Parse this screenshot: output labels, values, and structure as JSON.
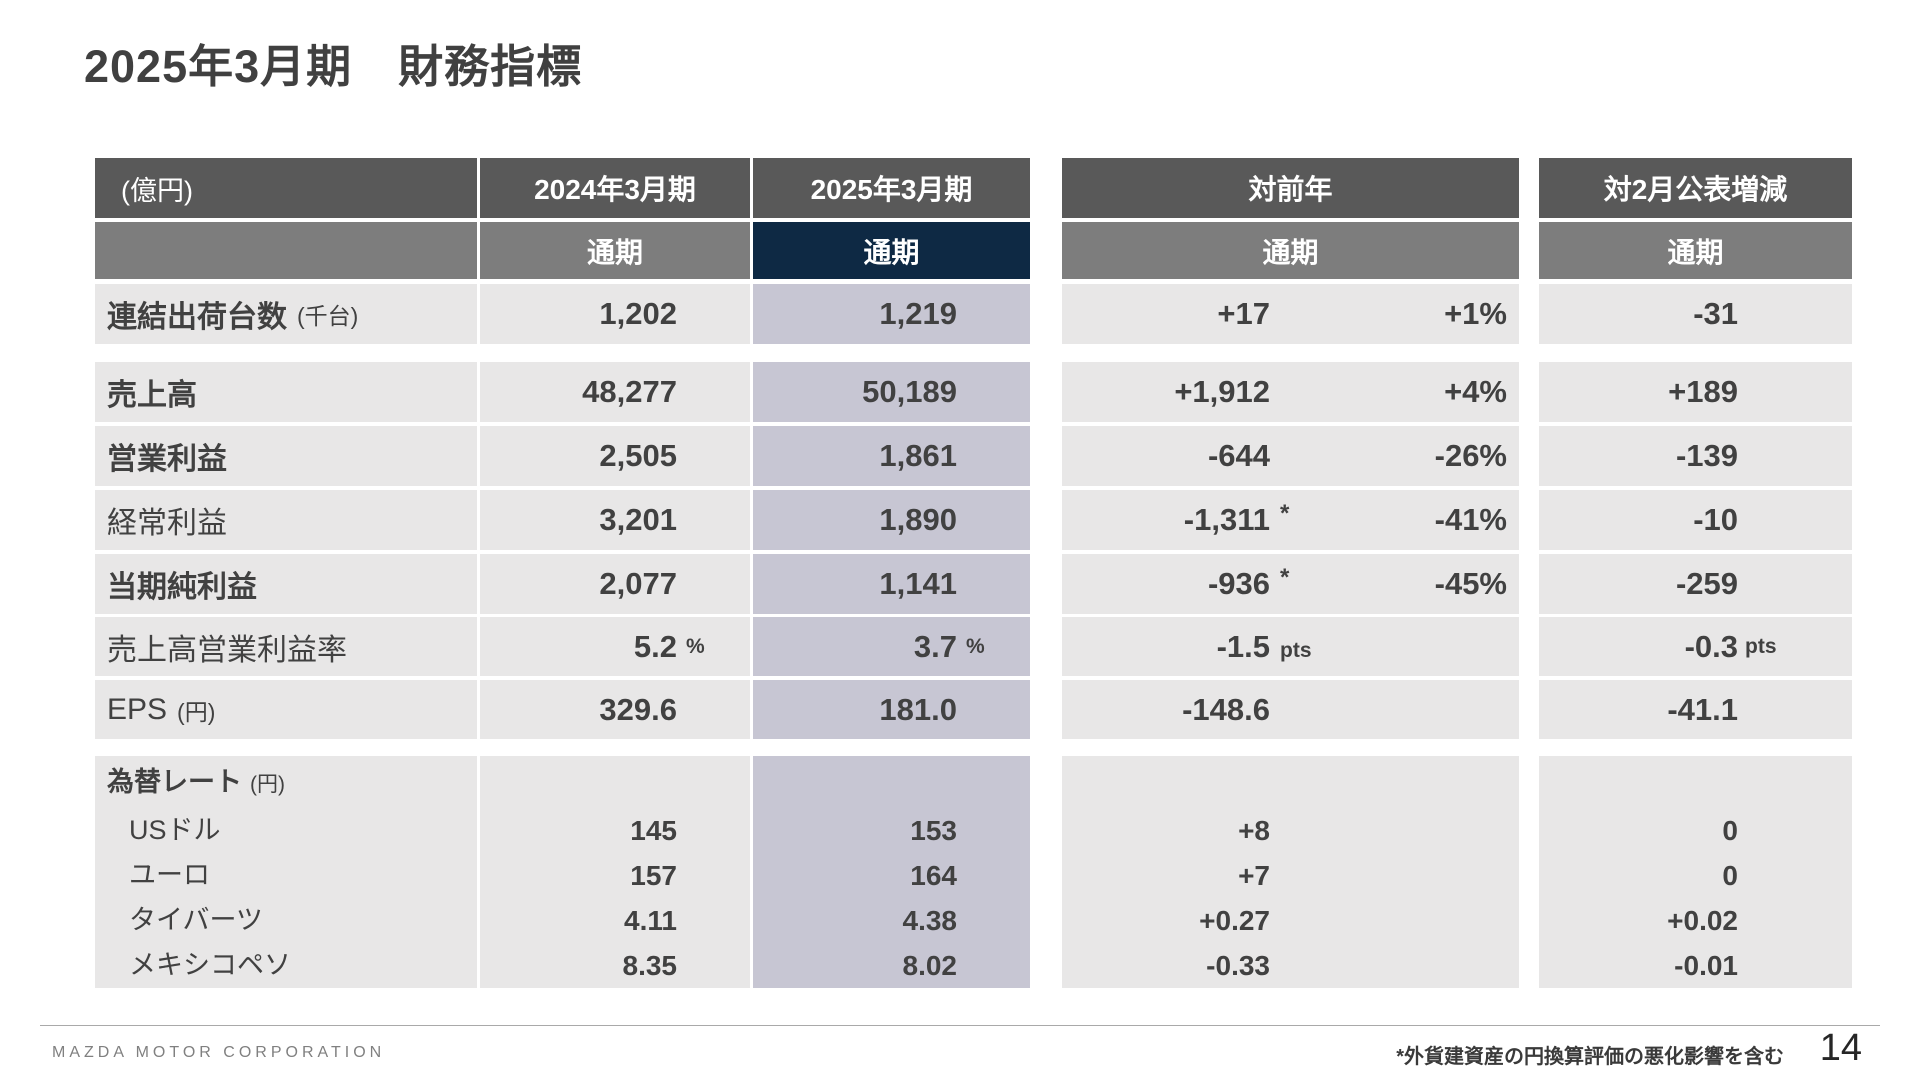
{
  "slide": {
    "title": "2025年3月期　財務指標",
    "unit_note": "(億円)"
  },
  "columns": {
    "fy2024": "2024年3月期",
    "fy2025": "2025年3月期",
    "yoy": "対前年",
    "vs_feb": "対2月公表増減",
    "period": "通期"
  },
  "rows": [
    {
      "label": "連結出荷台数",
      "label_suffix": "(千台)",
      "fy2024": "1,202",
      "fy2025": "1,219",
      "yoy": "+17",
      "yoy_pct": "+1%",
      "vs_feb": "-31"
    },
    {
      "label": "売上高",
      "fy2024": "48,277",
      "fy2025": "50,189",
      "yoy": "+1,912",
      "yoy_pct": "+4%",
      "vs_feb": "+189"
    },
    {
      "label": "営業利益",
      "fy2024": "2,505",
      "fy2025": "1,861",
      "yoy": "-644",
      "yoy_pct": "-26%",
      "vs_feb": "-139"
    },
    {
      "label": "経常利益",
      "fy2024": "3,201",
      "fy2025": "1,890",
      "yoy": "-1,311",
      "yoy_star": "*",
      "yoy_pct": "-41%",
      "vs_feb": "-10"
    },
    {
      "label": "当期純利益",
      "fy2024": "2,077",
      "fy2025": "1,141",
      "yoy": "-936",
      "yoy_star": "*",
      "yoy_pct": "-45%",
      "vs_feb": "-259"
    },
    {
      "label": "売上高営業利益率",
      "fy2024": "5.2",
      "fy2024_unit": "%",
      "fy2025": "3.7",
      "fy2025_unit": "%",
      "yoy": "-1.5",
      "yoy_unit": "pts",
      "vs_feb": "-0.3",
      "vs_feb_unit": "pts"
    },
    {
      "label": "EPS",
      "label_suffix": "(円)",
      "fy2024": "329.6",
      "fy2025": "181.0",
      "yoy": "-148.6",
      "vs_feb": "-41.1"
    }
  ],
  "fx": {
    "label": "為替レート",
    "label_suffix": "(円)",
    "rows": [
      {
        "label": "USドル",
        "fy2024": "145",
        "fy2025": "153",
        "yoy": "+8",
        "vs_feb": "0"
      },
      {
        "label": "ユーロ",
        "fy2024": "157",
        "fy2025": "164",
        "yoy": "+7",
        "vs_feb": "0"
      },
      {
        "label": "タイバーツ",
        "fy2024": "4.11",
        "fy2025": "4.38",
        "yoy": "+0.27",
        "vs_feb": "+0.02"
      },
      {
        "label": "メキシコペソ",
        "fy2024": "8.35",
        "fy2025": "8.02",
        "yoy": "-0.33",
        "vs_feb": "-0.01"
      }
    ]
  },
  "footer": {
    "company": "MAZDA MOTOR CORPORATION",
    "footnote": "*外貨建資産の円換算評価の悪化影響を含む",
    "page": "14"
  },
  "colors": {
    "header_dark": "#595959",
    "header_mid": "#7d7d7d",
    "highlight_navy": "#0e2944",
    "cell_light": "#e8e7e7",
    "cell_lavender": "#c7c6d3",
    "text": "#414141"
  }
}
